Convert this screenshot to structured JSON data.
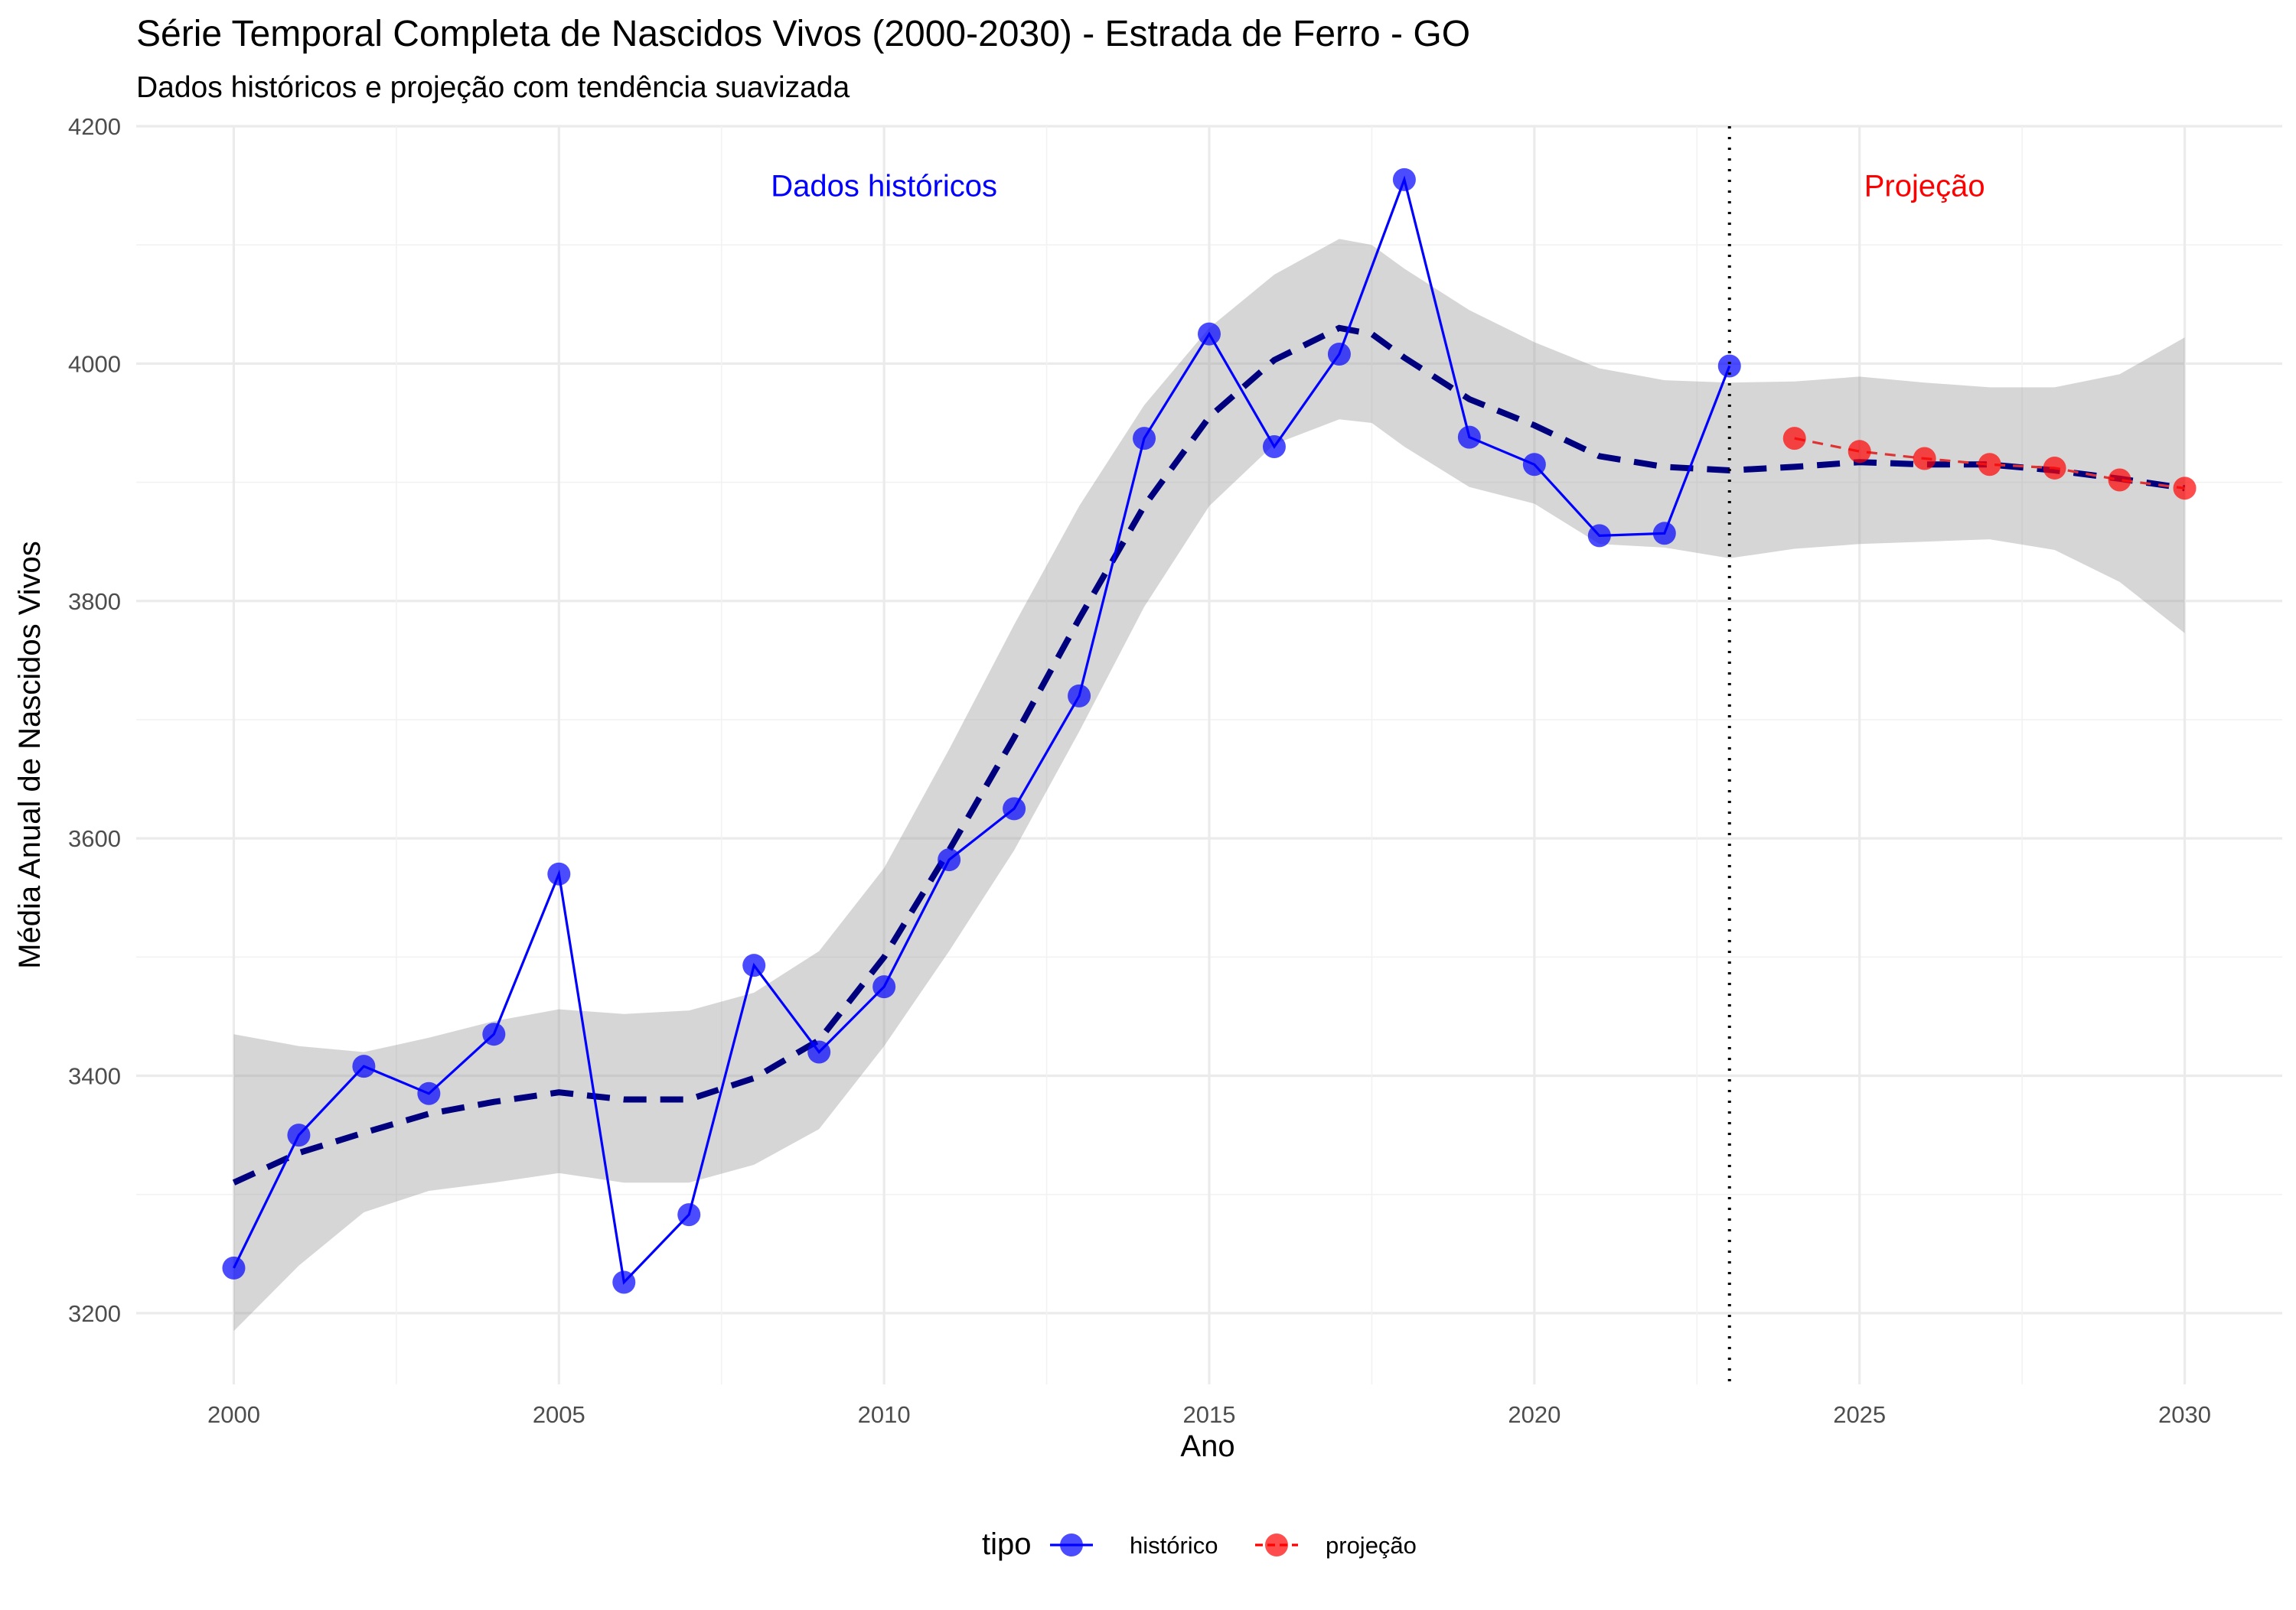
{
  "chart_data": {
    "type": "line",
    "title": "Série Temporal Completa de Nascidos Vivos (2000-2030) -  Estrada de Ferro - GO",
    "subtitle": "Dados históricos e projeção com tendência suavizada",
    "xlabel": "Ano",
    "ylabel": "Média Anual de Nascidos Vivos",
    "xlim": [
      1998.5,
      2031.5
    ],
    "ylim": [
      3140,
      4200
    ],
    "x_ticks": [
      2000,
      2005,
      2010,
      2015,
      2020,
      2025,
      2030
    ],
    "y_ticks": [
      3200,
      3400,
      3600,
      3800,
      4000,
      4200
    ],
    "grid": true,
    "legend": {
      "title": "tipo",
      "position": "bottom",
      "entries": [
        {
          "label": "histórico",
          "color": "#0000ff"
        },
        {
          "label": "projeção",
          "color": "#ff0000"
        }
      ]
    },
    "annotations": [
      {
        "text": "Dados históricos",
        "x": 2010.0,
        "y": 4150,
        "color": "#0000ff"
      },
      {
        "text": "Projeção",
        "x": 2026.0,
        "y": 4150,
        "color": "#ff0000"
      }
    ],
    "vline": {
      "x": 2023,
      "style": "dotted"
    },
    "series": [
      {
        "name": "histórico",
        "color": "#0000ff",
        "x": [
          2000,
          2001,
          2002,
          2003,
          2004,
          2005,
          2006,
          2007,
          2008,
          2009,
          2010,
          2011,
          2012,
          2013,
          2014,
          2015,
          2016,
          2017,
          2018,
          2019,
          2020,
          2021,
          2022,
          2023
        ],
        "values": [
          3238,
          3350,
          3408,
          3385,
          3435,
          3570,
          3226,
          3283,
          3493,
          3420,
          3475,
          3582,
          3625,
          3720,
          3937,
          4025,
          3930,
          4008,
          4155,
          3938,
          3915,
          3855,
          3857,
          3998
        ]
      },
      {
        "name": "projeção",
        "color": "#ff0000",
        "x": [
          2024,
          2025,
          2026,
          2027,
          2028,
          2029,
          2030
        ],
        "values": [
          3937,
          3926,
          3920,
          3915,
          3912,
          3902,
          3895
        ]
      }
    ],
    "trend": {
      "color": "#00007f",
      "x": [
        2000,
        2001,
        2002,
        2003,
        2004,
        2005,
        2006,
        2007,
        2008,
        2009,
        2010,
        2011,
        2012,
        2013,
        2014,
        2015,
        2016,
        2017,
        2017.5,
        2018,
        2019,
        2020,
        2021,
        2022,
        2023,
        2024,
        2025,
        2026,
        2027,
        2028,
        2029,
        2030
      ],
      "values": [
        3310,
        3335,
        3352,
        3368,
        3378,
        3386,
        3380,
        3380,
        3398,
        3430,
        3500,
        3590,
        3685,
        3785,
        3880,
        3955,
        4003,
        4030,
        4025,
        4005,
        3970,
        3948,
        3922,
        3913,
        3910,
        3913,
        3917,
        3915,
        3915,
        3910,
        3903,
        3895
      ],
      "lower": [
        3185,
        3240,
        3285,
        3303,
        3310,
        3318,
        3310,
        3310,
        3325,
        3355,
        3425,
        3505,
        3590,
        3690,
        3795,
        3880,
        3932,
        3953,
        3950,
        3930,
        3896,
        3882,
        3848,
        3845,
        3836,
        3844,
        3848,
        3850,
        3852,
        3843,
        3816,
        3773
      ],
      "upper": [
        3435,
        3425,
        3420,
        3432,
        3446,
        3456,
        3452,
        3455,
        3470,
        3505,
        3575,
        3675,
        3780,
        3880,
        3965,
        4030,
        4075,
        4105,
        4100,
        4080,
        4045,
        4018,
        3996,
        3986,
        3984,
        3985,
        3989,
        3984,
        3980,
        3980,
        3991,
        4022
      ]
    }
  }
}
